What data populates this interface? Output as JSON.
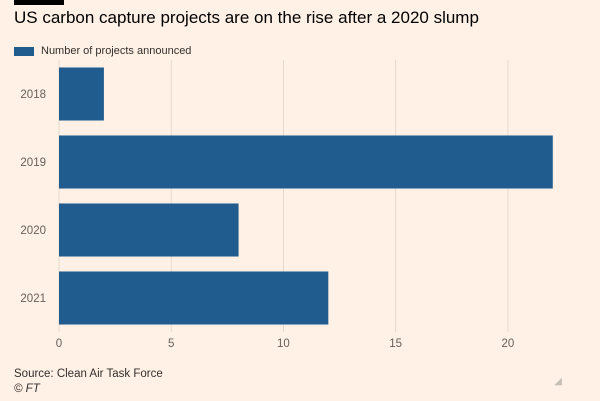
{
  "header": {
    "title": "US carbon capture projects are on the rise after a 2020 slump"
  },
  "legend": {
    "label": "Number of projects announced",
    "color": "#205c8e"
  },
  "chart_data": {
    "type": "bar",
    "orientation": "horizontal",
    "title": "US carbon capture projects are on the rise after a 2020 slump",
    "categories": [
      "2018",
      "2019",
      "2020",
      "2021"
    ],
    "series": [
      {
        "name": "Number of projects announced",
        "values": [
          2,
          22,
          8,
          12
        ]
      }
    ],
    "xlim": [
      0,
      22.5
    ],
    "xticks": [
      0,
      5,
      10,
      15,
      20
    ],
    "xlabel": "",
    "ylabel": "",
    "grid": true,
    "legend_position": "top-left",
    "bar_color": "#205c8e"
  },
  "footer": {
    "source": "Source: Clean Air Task Force",
    "credit": "© FT"
  },
  "icons": {
    "resize": "resize-handle-icon"
  }
}
